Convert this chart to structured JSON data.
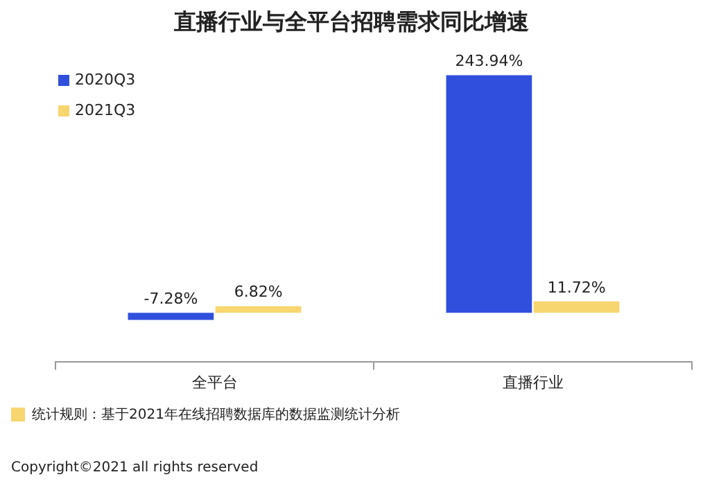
{
  "chart_data": {
    "type": "bar",
    "title": "直播行业与全平台招聘需求同比增速",
    "categories": [
      "全平台",
      "直播行业"
    ],
    "series": [
      {
        "name": "2020Q3",
        "color": "#2f4fdc",
        "values": [
          -7.28,
          243.94
        ],
        "value_labels": [
          "-7.28%",
          "243.94%"
        ]
      },
      {
        "name": "2021Q3",
        "color": "#f8d66f",
        "values": [
          6.82,
          11.72
        ],
        "value_labels": [
          "6.82%",
          "11.72%"
        ]
      }
    ],
    "legend": "top left",
    "grid": false,
    "tick_labels": "x",
    "annotations": [
      "统计规则：基于2021年在线招聘数据库的数据监测统计分析",
      "Copyright©2021 all rights reserved"
    ]
  }
}
